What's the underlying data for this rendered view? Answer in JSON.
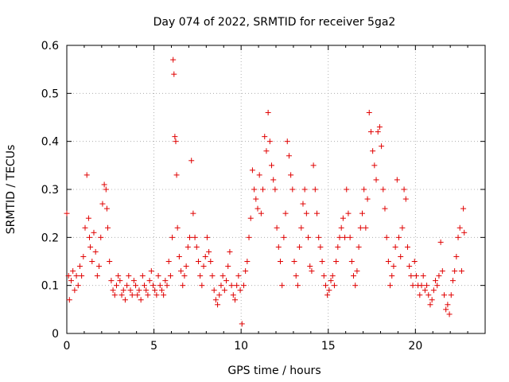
{
  "chart_data": {
    "type": "scatter",
    "title": "Day 074 of 2022, SRMTID for receiver 5ga2",
    "xlabel": "GPS time / hours",
    "ylabel": "SRMTID / TECUs",
    "xlim": [
      0,
      24
    ],
    "ylim": [
      0,
      0.6
    ],
    "x_ticks": [
      0,
      5,
      10,
      15,
      20
    ],
    "x_tick_labels": [
      "0",
      "5",
      "10",
      "15",
      "20"
    ],
    "y_ticks": [
      0,
      0.1,
      0.2,
      0.3,
      0.4,
      0.5,
      0.6
    ],
    "y_tick_labels": [
      "0",
      "0.1",
      "0.2",
      "0.3",
      "0.4",
      "0.5",
      "0.6"
    ],
    "grid": true,
    "marker": "+",
    "series_color": "#e00000",
    "series": [
      {
        "name": "SRMTID",
        "x": [
          0.0,
          0.1,
          0.15,
          0.25,
          0.35,
          0.45,
          0.55,
          0.65,
          0.75,
          0.85,
          0.95,
          1.05,
          1.15,
          1.25,
          1.3,
          1.35,
          1.45,
          1.55,
          1.65,
          1.75,
          1.85,
          1.95,
          2.05,
          2.15,
          2.25,
          2.3,
          2.35,
          2.45,
          2.55,
          2.65,
          2.75,
          2.85,
          2.95,
          3.05,
          3.15,
          3.25,
          3.35,
          3.45,
          3.55,
          3.65,
          3.75,
          3.85,
          3.95,
          4.05,
          4.15,
          4.25,
          4.35,
          4.45,
          4.55,
          4.65,
          4.75,
          4.85,
          4.95,
          5.05,
          5.15,
          5.25,
          5.35,
          5.45,
          5.55,
          5.65,
          5.75,
          5.85,
          5.95,
          6.05,
          6.1,
          6.15,
          6.2,
          6.25,
          6.3,
          6.35,
          6.45,
          6.55,
          6.65,
          6.75,
          6.85,
          6.95,
          7.05,
          7.15,
          7.25,
          7.35,
          7.45,
          7.55,
          7.65,
          7.75,
          7.85,
          7.95,
          8.05,
          8.15,
          8.25,
          8.35,
          8.45,
          8.55,
          8.65,
          8.75,
          8.85,
          8.95,
          9.05,
          9.15,
          9.25,
          9.35,
          9.45,
          9.55,
          9.65,
          9.75,
          9.85,
          9.95,
          10.05,
          10.15,
          10.25,
          10.35,
          10.45,
          10.55,
          10.65,
          10.75,
          10.85,
          10.95,
          11.05,
          11.15,
          11.25,
          11.35,
          11.45,
          11.55,
          11.65,
          11.75,
          11.85,
          11.95,
          12.05,
          12.15,
          12.25,
          12.35,
          12.45,
          12.55,
          12.65,
          12.75,
          12.85,
          12.95,
          13.05,
          13.15,
          13.25,
          13.35,
          13.45,
          13.55,
          13.65,
          13.75,
          13.85,
          13.95,
          14.05,
          14.15,
          14.25,
          14.35,
          14.45,
          14.55,
          14.65,
          14.75,
          14.85,
          14.95,
          15.05,
          15.15,
          15.25,
          15.35,
          15.45,
          15.55,
          15.65,
          15.75,
          15.85,
          15.95,
          16.05,
          16.15,
          16.25,
          16.35,
          16.45,
          16.55,
          16.65,
          16.75,
          16.85,
          16.95,
          17.05,
          17.15,
          17.25,
          17.35,
          17.45,
          17.55,
          17.65,
          17.75,
          17.85,
          17.95,
          18.05,
          18.15,
          18.25,
          18.35,
          18.45,
          18.55,
          18.65,
          18.75,
          18.85,
          18.95,
          19.05,
          19.15,
          19.25,
          19.35,
          19.45,
          19.55,
          19.65,
          19.75,
          19.85,
          19.95,
          20.05,
          20.15,
          20.25,
          20.35,
          20.45,
          20.55,
          20.65,
          20.75,
          20.85,
          20.95,
          21.05,
          21.15,
          21.25,
          21.35,
          21.45,
          21.55,
          21.65,
          21.75,
          21.85,
          21.95,
          22.05,
          22.15,
          22.25,
          22.35,
          22.45,
          22.55,
          22.65,
          22.75,
          22.8
        ],
        "y": [
          0.25,
          0.12,
          0.07,
          0.11,
          0.13,
          0.09,
          0.12,
          0.1,
          0.14,
          0.12,
          0.16,
          0.22,
          0.33,
          0.24,
          0.2,
          0.18,
          0.15,
          0.21,
          0.17,
          0.12,
          0.14,
          0.2,
          0.27,
          0.31,
          0.3,
          0.26,
          0.22,
          0.15,
          0.11,
          0.09,
          0.08,
          0.1,
          0.12,
          0.11,
          0.08,
          0.09,
          0.07,
          0.1,
          0.12,
          0.09,
          0.08,
          0.11,
          0.1,
          0.08,
          0.09,
          0.07,
          0.12,
          0.1,
          0.09,
          0.08,
          0.11,
          0.13,
          0.1,
          0.09,
          0.08,
          0.12,
          0.1,
          0.09,
          0.08,
          0.11,
          0.1,
          0.15,
          0.12,
          0.2,
          0.57,
          0.54,
          0.41,
          0.4,
          0.33,
          0.22,
          0.16,
          0.13,
          0.1,
          0.12,
          0.14,
          0.18,
          0.2,
          0.36,
          0.25,
          0.2,
          0.18,
          0.15,
          0.12,
          0.1,
          0.14,
          0.16,
          0.2,
          0.17,
          0.15,
          0.12,
          0.09,
          0.07,
          0.06,
          0.08,
          0.1,
          0.12,
          0.09,
          0.11,
          0.14,
          0.17,
          0.1,
          0.08,
          0.07,
          0.1,
          0.12,
          0.09,
          0.02,
          0.1,
          0.13,
          0.15,
          0.2,
          0.24,
          0.34,
          0.3,
          0.28,
          0.26,
          0.33,
          0.25,
          0.3,
          0.41,
          0.38,
          0.46,
          0.4,
          0.35,
          0.32,
          0.3,
          0.22,
          0.18,
          0.15,
          0.1,
          0.2,
          0.25,
          0.4,
          0.37,
          0.33,
          0.3,
          0.15,
          0.12,
          0.1,
          0.18,
          0.22,
          0.27,
          0.3,
          0.25,
          0.2,
          0.14,
          0.13,
          0.35,
          0.3,
          0.25,
          0.2,
          0.18,
          0.15,
          0.12,
          0.1,
          0.08,
          0.09,
          0.11,
          0.12,
          0.1,
          0.15,
          0.18,
          0.2,
          0.22,
          0.24,
          0.2,
          0.3,
          0.25,
          0.2,
          0.15,
          0.12,
          0.1,
          0.13,
          0.18,
          0.22,
          0.25,
          0.3,
          0.22,
          0.28,
          0.46,
          0.42,
          0.38,
          0.35,
          0.32,
          0.42,
          0.43,
          0.39,
          0.3,
          0.26,
          0.2,
          0.15,
          0.1,
          0.12,
          0.14,
          0.18,
          0.32,
          0.2,
          0.16,
          0.22,
          0.3,
          0.28,
          0.18,
          0.14,
          0.12,
          0.1,
          0.15,
          0.12,
          0.1,
          0.08,
          0.1,
          0.12,
          0.09,
          0.1,
          0.08,
          0.06,
          0.07,
          0.09,
          0.11,
          0.1,
          0.12,
          0.19,
          0.13,
          0.08,
          0.05,
          0.06,
          0.04,
          0.08,
          0.11,
          0.13,
          0.16,
          0.2,
          0.22,
          0.13,
          0.26,
          0.21
        ]
      }
    ]
  }
}
